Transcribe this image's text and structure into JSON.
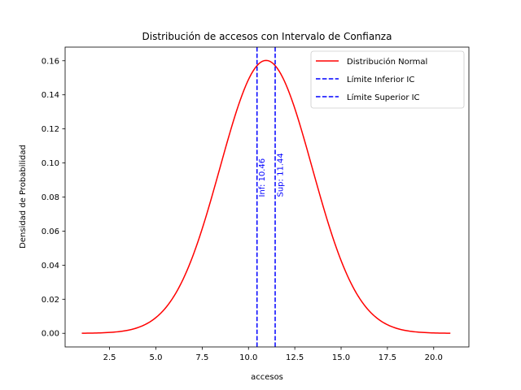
{
  "chart_data": {
    "type": "line",
    "title": "Distribución de accesos con Intervalo de Confianza",
    "xlabel": "accesos",
    "ylabel": "Densidad de Probabilidad",
    "xlim": [
      0.1,
      21.9
    ],
    "ylim": [
      -0.008,
      0.168
    ],
    "x_ticks": [
      2.5,
      5.0,
      7.5,
      10.0,
      12.5,
      15.0,
      17.5,
      20.0
    ],
    "x_tick_labels": [
      "2.5",
      "5.0",
      "7.5",
      "10.0",
      "12.5",
      "15.0",
      "17.5",
      "20.0"
    ],
    "y_ticks": [
      0.0,
      0.02,
      0.04,
      0.06,
      0.08,
      0.1,
      0.12,
      0.14,
      0.16
    ],
    "y_tick_labels": [
      "0.00",
      "0.02",
      "0.04",
      "0.06",
      "0.08",
      "0.10",
      "0.12",
      "0.14",
      "0.16"
    ],
    "grid": false,
    "legend_position": "top-right",
    "series": [
      {
        "name": "Distribución Normal",
        "kind": "normal-curve",
        "color": "#ff0000",
        "x_start": 1.0,
        "x_end": 20.9,
        "mean": 10.95,
        "sd": 2.49
      }
    ],
    "vlines": [
      {
        "name": "Límite Inferior IC",
        "x": 10.46,
        "label": "Inf: 10.46",
        "color": "#0000ff",
        "style": "dashed",
        "label_y": 0.08
      },
      {
        "name": "Límite Superior IC",
        "x": 11.44,
        "label": "Sup: 11.44",
        "color": "#0000ff",
        "style": "dashed",
        "label_y": 0.08
      }
    ]
  }
}
